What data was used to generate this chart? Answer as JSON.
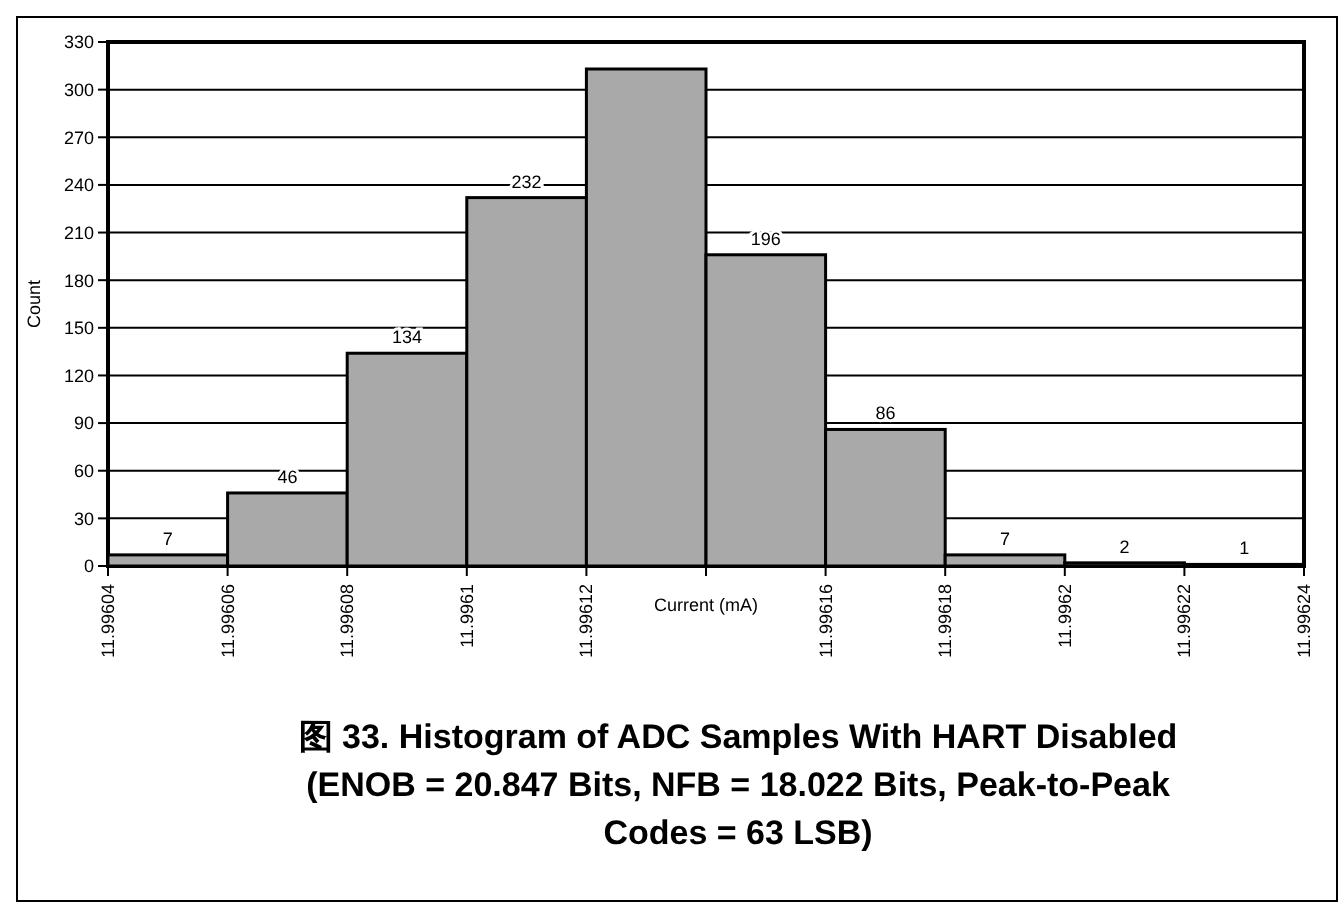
{
  "chart_data": {
    "type": "histogram",
    "title": "图 33. Histogram of ADC Samples With HART Disabled (ENOB = 20.847 Bits, NFB = 18.022 Bits, Peak-to-Peak Codes = 63 LSB)",
    "xlabel": "Current (mA)",
    "ylabel": "Count",
    "bins": [
      11.99604,
      11.99606,
      11.99608,
      11.9961,
      11.99612,
      11.99614,
      11.99616,
      11.99618,
      11.9962,
      11.99622,
      11.99624
    ],
    "values": [
      7,
      46,
      134,
      232,
      313,
      196,
      86,
      7,
      2,
      1
    ],
    "value_labels": [
      "7",
      "46",
      "134",
      "232",
      null,
      "196",
      "86",
      "7",
      "2",
      "1"
    ],
    "color": "#a9a9a9",
    "xlim": [
      11.99604,
      11.99624
    ],
    "xticks": [
      11.99604,
      11.99606,
      11.99608,
      11.9961,
      11.99612,
      {
        "value": 11.99614,
        "label": null
      },
      11.99616,
      11.99618,
      11.9962,
      11.99622,
      11.99624
    ],
    "ylim": [
      0,
      330
    ],
    "yticks": [
      0,
      30,
      60,
      90,
      120,
      150,
      180,
      210,
      240,
      270,
      300,
      330
    ],
    "grid": "y"
  }
}
